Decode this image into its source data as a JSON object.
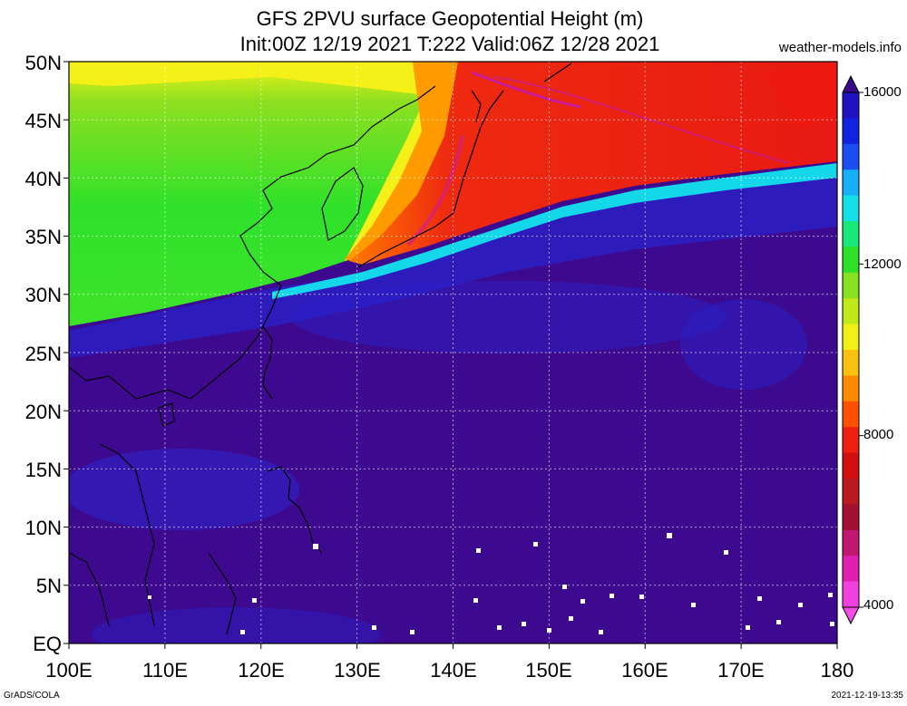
{
  "header": {
    "title_line1": "GFS 2PVU surface Geopotential Height (m)",
    "title_line2": "Init:00Z 12/19 2021 T:222 Valid:06Z 12/28 2021",
    "site": "weather-models.info"
  },
  "map_data": {
    "projection": "lat-lon",
    "lon_range": [
      100,
      180
    ],
    "lat_range": [
      0,
      50
    ],
    "lat_ticks": [
      "50N",
      "45N",
      "40N",
      "35N",
      "30N",
      "25N",
      "20N",
      "15N",
      "10N",
      "5N",
      "EQ"
    ],
    "lon_ticks": [
      "100E",
      "110E",
      "120E",
      "130E",
      "140E",
      "150E",
      "160E",
      "170E",
      "180"
    ],
    "grid": true,
    "colors": {
      "deep_purple": "#3d0a8f",
      "blue": "#1c23e0",
      "cyan": "#14e2e8",
      "green": "#34e02c",
      "yellow": "#f2f217",
      "orange": "#ff9a00",
      "red": "#ee1a10",
      "magenta": "#e01fc8"
    }
  },
  "colorbar": {
    "labels": [
      "16000",
      "12000",
      "8000",
      "4000"
    ],
    "colors": [
      "#1f12c0",
      "#1024e0",
      "#1b4ef0",
      "#17b0f8",
      "#14e0e8",
      "#18e878",
      "#2ee028",
      "#88e020",
      "#c0e81a",
      "#f0f018",
      "#f8c010",
      "#ff8c00",
      "#ff5000",
      "#ee2010",
      "#d01010",
      "#b81a20",
      "#a01030",
      "#c01870",
      "#e020b0",
      "#f040e0"
    ]
  },
  "footer": {
    "left": "GrADS/COLA",
    "right": "2021-12-19-13:35"
  }
}
